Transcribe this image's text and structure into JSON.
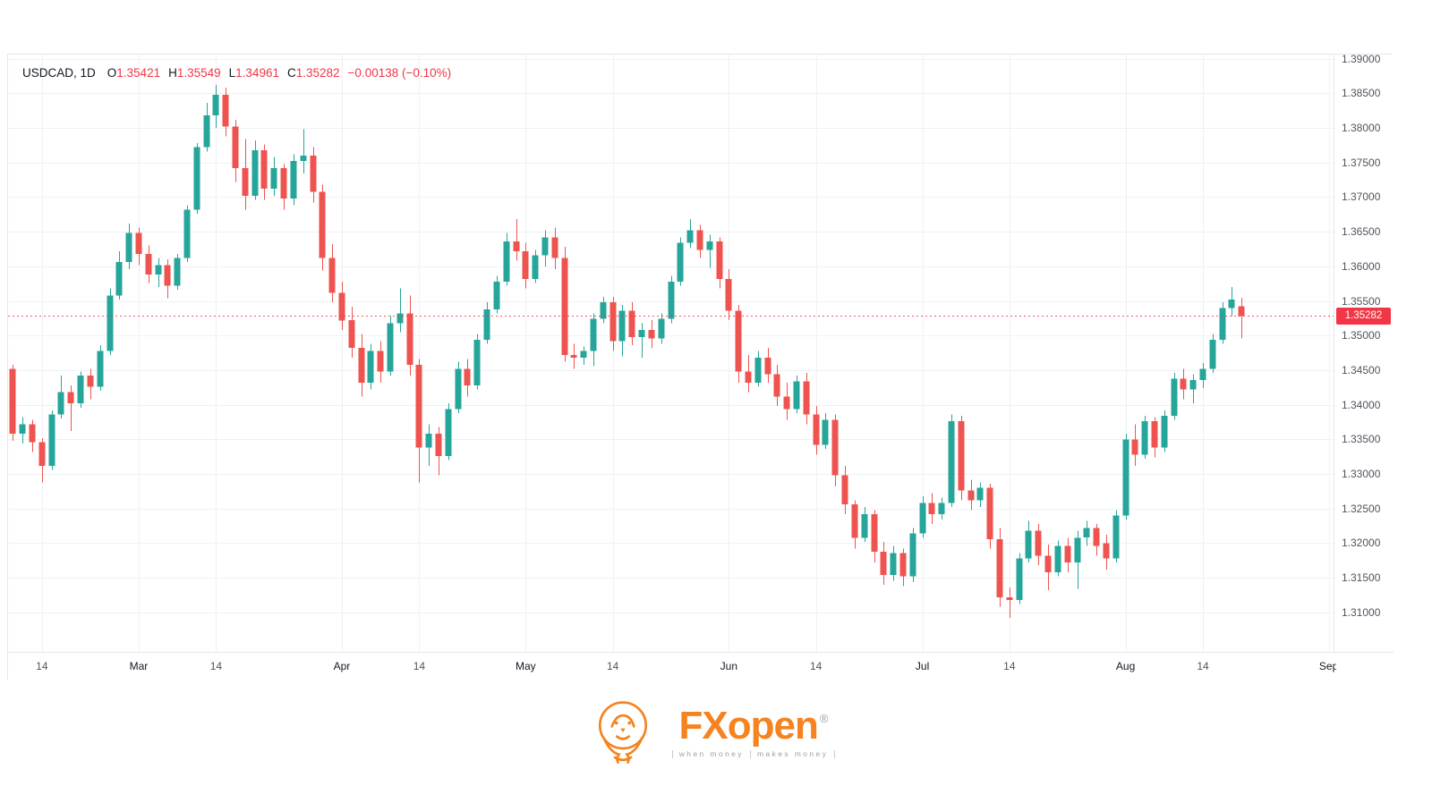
{
  "legend": {
    "symbol": "USDCAD, 1D",
    "items": [
      {
        "k": "O",
        "v": "1.35421"
      },
      {
        "k": "H",
        "v": "1.35549"
      },
      {
        "k": "L",
        "v": "1.34961"
      },
      {
        "k": "C",
        "v": "1.35282"
      }
    ],
    "change": "−0.00138 (−0.10%)"
  },
  "colors": {
    "up": "#26a69a",
    "down": "#ef5350",
    "accent": "#f23645",
    "grid": "#eef1f6",
    "axis_text": "#50535e",
    "brand_orange": "#f5831f"
  },
  "price_axis": {
    "tag": "1.35282"
  },
  "logo": {
    "fx_open": "FXopen",
    "reg": "®",
    "tagline_left": "when money",
    "tagline_right": "makes money"
  },
  "chart_data": {
    "type": "candlestick",
    "title": "USDCAD, 1D",
    "symbol": "USDCAD",
    "timeframe": "1D",
    "last_ohlc": {
      "open": 1.35421,
      "high": 1.35549,
      "low": 1.34961,
      "close": 1.35282,
      "change": -0.00138,
      "change_pct": -0.1
    },
    "current_price": 1.35282,
    "ylim": [
      1.3043,
      1.3906
    ],
    "slots": 137,
    "price_ticks": [
      "1.39000",
      "1.38500",
      "1.38000",
      "1.37500",
      "1.37000",
      "1.36500",
      "1.36000",
      "1.35500",
      "1.35000",
      "1.34500",
      "1.34000",
      "1.33500",
      "1.33000",
      "1.32500",
      "1.32000",
      "1.31500",
      "1.31000"
    ],
    "time_ticks": [
      {
        "label": "14",
        "index": 3,
        "major": false
      },
      {
        "label": "Mar",
        "index": 13,
        "major": true
      },
      {
        "label": "14",
        "index": 21,
        "major": false
      },
      {
        "label": "Apr",
        "index": 34,
        "major": true
      },
      {
        "label": "14",
        "index": 42,
        "major": false
      },
      {
        "label": "May",
        "index": 53,
        "major": true
      },
      {
        "label": "14",
        "index": 62,
        "major": false
      },
      {
        "label": "Jun",
        "index": 74,
        "major": true
      },
      {
        "label": "14",
        "index": 83,
        "major": false
      },
      {
        "label": "Jul",
        "index": 94,
        "major": true
      },
      {
        "label": "14",
        "index": 103,
        "major": false
      },
      {
        "label": "Aug",
        "index": 115,
        "major": true
      },
      {
        "label": "14",
        "index": 123,
        "major": false
      },
      {
        "label": "Sep",
        "index": 136,
        "major": true
      }
    ],
    "candles": [
      [
        1.3452,
        1.3458,
        1.3348,
        1.3358
      ],
      [
        1.3358,
        1.3382,
        1.3344,
        1.3372
      ],
      [
        1.3372,
        1.3378,
        1.3332,
        1.3346
      ],
      [
        1.3346,
        1.3352,
        1.3288,
        1.3312
      ],
      [
        1.3312,
        1.3392,
        1.3306,
        1.3386
      ],
      [
        1.3386,
        1.3442,
        1.338,
        1.3418
      ],
      [
        1.3418,
        1.3428,
        1.3362,
        1.3402
      ],
      [
        1.3402,
        1.3448,
        1.3396,
        1.3442
      ],
      [
        1.3442,
        1.3452,
        1.3408,
        1.3426
      ],
      [
        1.3426,
        1.3486,
        1.342,
        1.3478
      ],
      [
        1.3478,
        1.3568,
        1.3472,
        1.3558
      ],
      [
        1.3558,
        1.3622,
        1.3552,
        1.3606
      ],
      [
        1.3606,
        1.3662,
        1.3596,
        1.3648
      ],
      [
        1.3648,
        1.3656,
        1.3602,
        1.3618
      ],
      [
        1.3618,
        1.363,
        1.3576,
        1.3588
      ],
      [
        1.3588,
        1.3612,
        1.357,
        1.3602
      ],
      [
        1.3602,
        1.361,
        1.3554,
        1.3572
      ],
      [
        1.3572,
        1.3618,
        1.3566,
        1.3612
      ],
      [
        1.3612,
        1.3688,
        1.3606,
        1.3682
      ],
      [
        1.3682,
        1.3778,
        1.3676,
        1.3772
      ],
      [
        1.3772,
        1.3836,
        1.3766,
        1.3818
      ],
      [
        1.3818,
        1.3862,
        1.38,
        1.3848
      ],
      [
        1.3848,
        1.3858,
        1.3788,
        1.3802
      ],
      [
        1.3802,
        1.3812,
        1.3722,
        1.3742
      ],
      [
        1.3742,
        1.3784,
        1.3682,
        1.3702
      ],
      [
        1.3702,
        1.3782,
        1.3696,
        1.3768
      ],
      [
        1.3768,
        1.3776,
        1.3696,
        1.3712
      ],
      [
        1.3712,
        1.3758,
        1.3702,
        1.3742
      ],
      [
        1.3742,
        1.3748,
        1.3682,
        1.3698
      ],
      [
        1.3698,
        1.3762,
        1.3688,
        1.3752
      ],
      [
        1.3752,
        1.3798,
        1.3734,
        1.376
      ],
      [
        1.376,
        1.3772,
        1.3692,
        1.3708
      ],
      [
        1.3708,
        1.3718,
        1.3594,
        1.3612
      ],
      [
        1.3612,
        1.3632,
        1.3548,
        1.3562
      ],
      [
        1.3562,
        1.3578,
        1.3508,
        1.3522
      ],
      [
        1.3522,
        1.3542,
        1.3468,
        1.3482
      ],
      [
        1.3482,
        1.3502,
        1.3412,
        1.3432
      ],
      [
        1.3432,
        1.3488,
        1.3422,
        1.3478
      ],
      [
        1.3478,
        1.3492,
        1.3432,
        1.3448
      ],
      [
        1.3448,
        1.3528,
        1.3442,
        1.3518
      ],
      [
        1.3518,
        1.3568,
        1.3505,
        1.3532
      ],
      [
        1.3532,
        1.3558,
        1.3442,
        1.3458
      ],
      [
        1.3458,
        1.3466,
        1.3288,
        1.3338
      ],
      [
        1.3338,
        1.3372,
        1.3312,
        1.3358
      ],
      [
        1.3358,
        1.3368,
        1.3298,
        1.3326
      ],
      [
        1.3326,
        1.3402,
        1.332,
        1.3394
      ],
      [
        1.3394,
        1.3462,
        1.3388,
        1.3452
      ],
      [
        1.3452,
        1.3466,
        1.3412,
        1.3428
      ],
      [
        1.3428,
        1.3502,
        1.3422,
        1.3494
      ],
      [
        1.3494,
        1.3548,
        1.3488,
        1.3538
      ],
      [
        1.3538,
        1.3586,
        1.3532,
        1.3578
      ],
      [
        1.3578,
        1.3648,
        1.3572,
        1.3636
      ],
      [
        1.3636,
        1.3668,
        1.3608,
        1.3622
      ],
      [
        1.3622,
        1.3634,
        1.3568,
        1.3582
      ],
      [
        1.3582,
        1.3624,
        1.3576,
        1.3616
      ],
      [
        1.3616,
        1.3652,
        1.36,
        1.3642
      ],
      [
        1.3642,
        1.3656,
        1.3596,
        1.3612
      ],
      [
        1.3612,
        1.3628,
        1.3462,
        1.3472
      ],
      [
        1.3472,
        1.3488,
        1.3452,
        1.3468
      ],
      [
        1.3468,
        1.3484,
        1.3458,
        1.3478
      ],
      [
        1.3478,
        1.3532,
        1.3456,
        1.3524
      ],
      [
        1.3524,
        1.3556,
        1.3518,
        1.3548
      ],
      [
        1.3548,
        1.3556,
        1.3478,
        1.3492
      ],
      [
        1.3492,
        1.3544,
        1.347,
        1.3536
      ],
      [
        1.3536,
        1.3548,
        1.3486,
        1.3498
      ],
      [
        1.3498,
        1.3518,
        1.3468,
        1.3508
      ],
      [
        1.3508,
        1.3522,
        1.3482,
        1.3496
      ],
      [
        1.3496,
        1.3532,
        1.3488,
        1.3524
      ],
      [
        1.3524,
        1.3586,
        1.3518,
        1.3578
      ],
      [
        1.3578,
        1.3642,
        1.3572,
        1.3634
      ],
      [
        1.3634,
        1.3668,
        1.3626,
        1.3652
      ],
      [
        1.3652,
        1.366,
        1.3612,
        1.3624
      ],
      [
        1.3624,
        1.3646,
        1.3598,
        1.3636
      ],
      [
        1.3636,
        1.3642,
        1.3568,
        1.3582
      ],
      [
        1.3582,
        1.3596,
        1.3522,
        1.3536
      ],
      [
        1.3536,
        1.3544,
        1.3432,
        1.3448
      ],
      [
        1.3448,
        1.3472,
        1.3418,
        1.3432
      ],
      [
        1.3432,
        1.3478,
        1.3426,
        1.3468
      ],
      [
        1.3468,
        1.3482,
        1.3432,
        1.3444
      ],
      [
        1.3444,
        1.3458,
        1.3398,
        1.3412
      ],
      [
        1.3412,
        1.3432,
        1.3378,
        1.3394
      ],
      [
        1.3394,
        1.3442,
        1.3388,
        1.3434
      ],
      [
        1.3434,
        1.3446,
        1.3372,
        1.3386
      ],
      [
        1.3386,
        1.3398,
        1.3328,
        1.3342
      ],
      [
        1.3342,
        1.3388,
        1.3336,
        1.3378
      ],
      [
        1.3378,
        1.3386,
        1.3282,
        1.3298
      ],
      [
        1.3298,
        1.3312,
        1.3242,
        1.3256
      ],
      [
        1.3256,
        1.3262,
        1.3192,
        1.3208
      ],
      [
        1.3208,
        1.3252,
        1.3202,
        1.3242
      ],
      [
        1.3242,
        1.3248,
        1.3172,
        1.3188
      ],
      [
        1.3188,
        1.3202,
        1.314,
        1.3154
      ],
      [
        1.3154,
        1.3196,
        1.3146,
        1.3186
      ],
      [
        1.3186,
        1.3192,
        1.3138,
        1.3152
      ],
      [
        1.3152,
        1.3222,
        1.3144,
        1.3214
      ],
      [
        1.3214,
        1.3268,
        1.3208,
        1.3258
      ],
      [
        1.3258,
        1.3272,
        1.3228,
        1.3242
      ],
      [
        1.3242,
        1.3266,
        1.3234,
        1.3258
      ],
      [
        1.3258,
        1.3386,
        1.3252,
        1.3376
      ],
      [
        1.3376,
        1.3384,
        1.3262,
        1.3276
      ],
      [
        1.3276,
        1.3292,
        1.3248,
        1.3262
      ],
      [
        1.3262,
        1.3288,
        1.3252,
        1.328
      ],
      [
        1.328,
        1.3286,
        1.3192,
        1.3206
      ],
      [
        1.3206,
        1.3222,
        1.3108,
        1.3122
      ],
      [
        1.3122,
        1.3136,
        1.3092,
        1.3118
      ],
      [
        1.3118,
        1.3186,
        1.3112,
        1.3178
      ],
      [
        1.3178,
        1.3232,
        1.3172,
        1.3218
      ],
      [
        1.3218,
        1.3228,
        1.3168,
        1.3182
      ],
      [
        1.3182,
        1.3198,
        1.3132,
        1.3158
      ],
      [
        1.3158,
        1.3204,
        1.3152,
        1.3196
      ],
      [
        1.3196,
        1.3208,
        1.3158,
        1.3172
      ],
      [
        1.3172,
        1.3218,
        1.3134,
        1.3208
      ],
      [
        1.3208,
        1.3232,
        1.3196,
        1.3222
      ],
      [
        1.3222,
        1.3228,
        1.3182,
        1.3196
      ],
      [
        1.32,
        1.3212,
        1.3162,
        1.3178
      ],
      [
        1.3178,
        1.3248,
        1.3172,
        1.324
      ],
      [
        1.324,
        1.3358,
        1.3234,
        1.335
      ],
      [
        1.335,
        1.3372,
        1.3312,
        1.3328
      ],
      [
        1.3328,
        1.3384,
        1.3322,
        1.3376
      ],
      [
        1.3376,
        1.3382,
        1.3324,
        1.3338
      ],
      [
        1.3338,
        1.3392,
        1.3332,
        1.3384
      ],
      [
        1.3384,
        1.3446,
        1.3378,
        1.3438
      ],
      [
        1.3438,
        1.3452,
        1.3408,
        1.3422
      ],
      [
        1.3422,
        1.3444,
        1.3402,
        1.3436
      ],
      [
        1.3436,
        1.346,
        1.3424,
        1.3452
      ],
      [
        1.3452,
        1.3502,
        1.3446,
        1.3494
      ],
      [
        1.3494,
        1.3548,
        1.3488,
        1.354
      ],
      [
        1.354,
        1.357,
        1.3528,
        1.3552
      ],
      [
        1.35421,
        1.35549,
        1.34961,
        1.35282
      ]
    ]
  }
}
